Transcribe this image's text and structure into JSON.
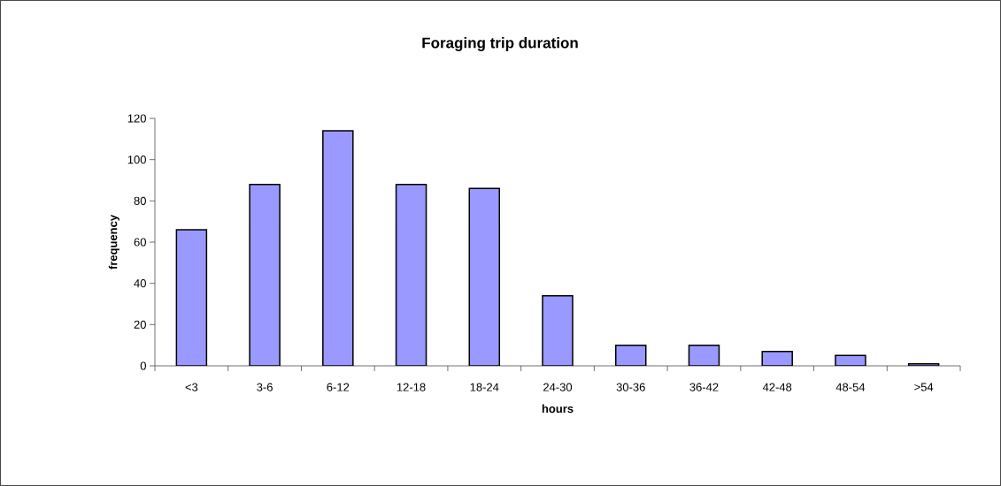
{
  "chart_data": {
    "type": "bar",
    "title": "Foraging trip duration",
    "xlabel": "hours",
    "ylabel": "frequency",
    "categories": [
      "<3",
      "3-6",
      "6-12",
      "12-18",
      "18-24",
      "24-30",
      "30-36",
      "36-42",
      "42-48",
      "48-54",
      ">54"
    ],
    "values": [
      66,
      88,
      114,
      88,
      86,
      34,
      10,
      10,
      7,
      5,
      1
    ],
    "color": "#9999ff",
    "ylim": [
      0,
      120
    ],
    "yticks": [
      0,
      20,
      40,
      60,
      80,
      100,
      120
    ],
    "grid": false
  }
}
